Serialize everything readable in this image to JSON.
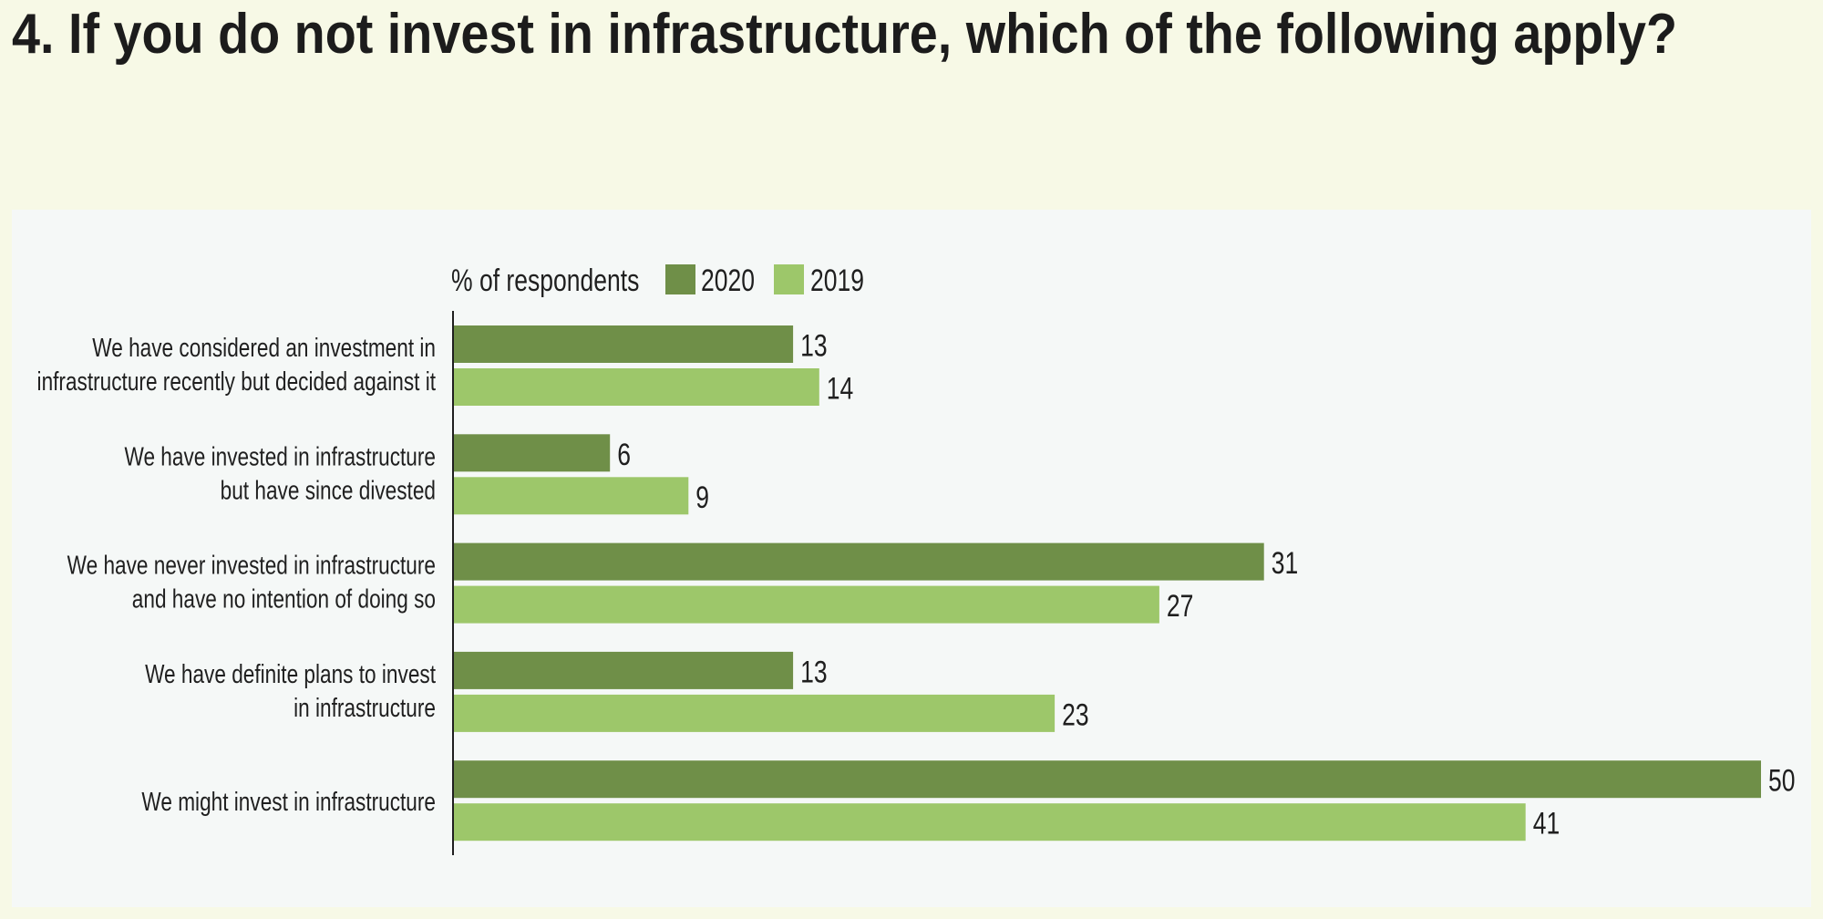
{
  "title": "4. If you do not invest in infrastructure, which of the following apply?",
  "colors": {
    "page_bg": "#f7f9e6",
    "panel_bg": "#f5f8f7",
    "series_2020": "#6f8f48",
    "series_2019": "#9dc76a"
  },
  "chart_data": {
    "type": "bar",
    "orientation": "horizontal",
    "unit_label": "% of respondents",
    "legend_placement": "top",
    "grid": false,
    "xlim": [
      0,
      50
    ],
    "categories": [
      [
        "We have considered an investment in",
        "infrastructure recently but decided against it"
      ],
      [
        "We have invested in infrastructure",
        "but have since divested"
      ],
      [
        "We have never invested in infrastructure",
        "and have no intention of doing so"
      ],
      [
        "We have definite plans to invest",
        "in infrastructure"
      ],
      [
        "We might invest in infrastructure"
      ]
    ],
    "series": [
      {
        "name": "2020",
        "values": [
          13,
          6,
          31,
          13,
          50
        ]
      },
      {
        "name": "2019",
        "values": [
          14,
          9,
          27,
          23,
          41
        ]
      }
    ]
  }
}
